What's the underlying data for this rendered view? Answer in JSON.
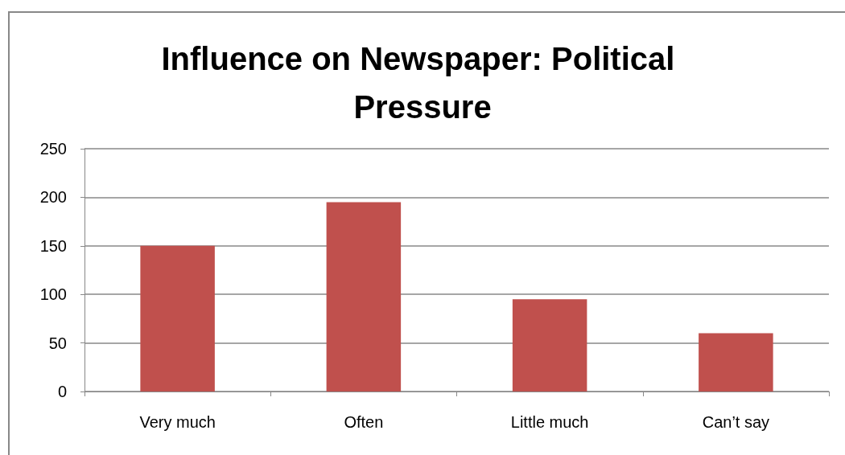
{
  "chart_data": {
    "type": "bar",
    "title": "Influence on Newspaper: Political Pressure",
    "categories": [
      "Very much",
      "Often",
      "Little much",
      "Can’t say"
    ],
    "values": [
      150,
      195,
      95,
      60
    ],
    "color": "#c0504d",
    "ylim": [
      0,
      250
    ],
    "yticks": [
      0,
      50,
      100,
      150,
      200,
      250
    ],
    "grid": "y"
  }
}
